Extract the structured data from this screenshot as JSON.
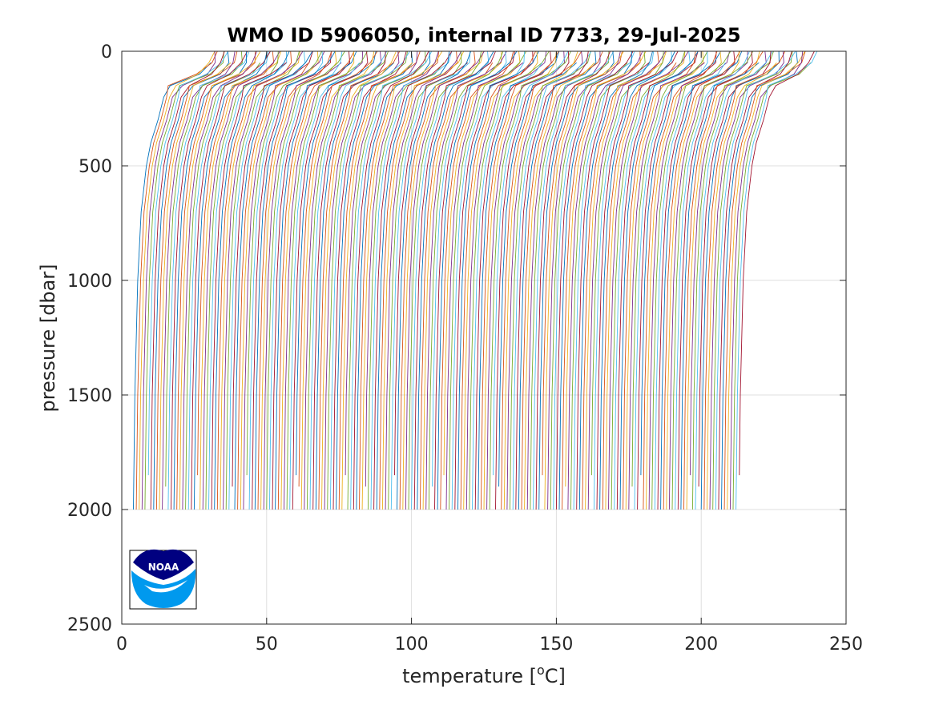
{
  "chart_data": {
    "type": "line",
    "title": "WMO ID 5906050, internal ID 7733, 29-Jul-2025",
    "xlabel": "temperature [",
    "xlabel_sup": "o",
    "xlabel_suffix": "C]",
    "ylabel": "pressure [dbar]",
    "xlim": [
      0,
      250
    ],
    "ylim": [
      0,
      2500
    ],
    "y_reversed": true,
    "grid": true,
    "x_ticks": [
      0,
      50,
      100,
      150,
      200,
      250
    ],
    "y_ticks": [
      0,
      500,
      1000,
      1500,
      2000,
      2500
    ],
    "series_count": 210,
    "profile_offset_step": 1,
    "profile_shape": {
      "pressure": [
        0,
        50,
        100,
        150,
        200,
        300,
        400,
        500,
        700,
        1000,
        1500,
        2000
      ],
      "temperature_relative": [
        27,
        26,
        22,
        13,
        11,
        9,
        6.5,
        5,
        3.2,
        2.0,
        1.0,
        0.5
      ]
    },
    "colors": [
      "#0072bd",
      "#d95319",
      "#edb120",
      "#7e2f8e",
      "#77ac30",
      "#4dbeee",
      "#a2142f"
    ],
    "logo": {
      "text": "NOAA",
      "color_dark": "#000080",
      "color_light": "#0099ee"
    }
  }
}
